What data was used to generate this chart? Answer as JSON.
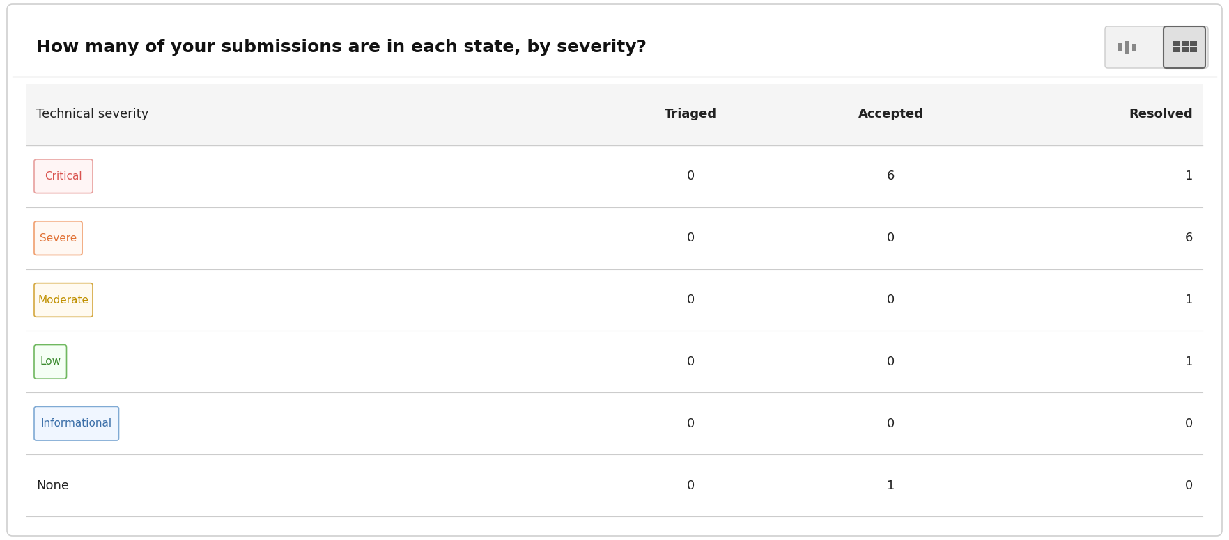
{
  "title": "How many of your submissions are in each state, by severity?",
  "title_fontsize": 18,
  "title_fontweight": "bold",
  "columns": [
    "Technical severity",
    "Triaged",
    "Accepted",
    "Resolved"
  ],
  "col_weights": [
    0.48,
    0.17,
    0.17,
    0.18
  ],
  "rows": [
    {
      "label": "Critical",
      "badge": true,
      "badge_text_color": "#d9534f",
      "badge_border_color": "#e8a09e",
      "badge_bg": "#fff5f5",
      "triaged": "0",
      "accepted": "6",
      "resolved": "1"
    },
    {
      "label": "Severe",
      "badge": true,
      "badge_text_color": "#e07033",
      "badge_border_color": "#f0a070",
      "badge_bg": "#fff8f3",
      "triaged": "0",
      "accepted": "0",
      "resolved": "6"
    },
    {
      "label": "Moderate",
      "badge": true,
      "badge_text_color": "#c09000",
      "badge_border_color": "#d4a840",
      "badge_bg": "#fffaf0",
      "triaged": "0",
      "accepted": "0",
      "resolved": "1"
    },
    {
      "label": "Low",
      "badge": true,
      "badge_text_color": "#3a8a2e",
      "badge_border_color": "#70b860",
      "badge_bg": "#f5fff5",
      "triaged": "0",
      "accepted": "0",
      "resolved": "1"
    },
    {
      "label": "Informational",
      "badge": true,
      "badge_text_color": "#3a6ea8",
      "badge_border_color": "#80aad4",
      "badge_bg": "#f0f6ff",
      "triaged": "0",
      "accepted": "0",
      "resolved": "0"
    },
    {
      "label": "None",
      "badge": false,
      "badge_text_color": null,
      "badge_border_color": null,
      "badge_bg": null,
      "triaged": "0",
      "accepted": "1",
      "resolved": "0"
    }
  ],
  "header_bg": "#f5f5f5",
  "divider_color": "#cccccc",
  "outer_border_color": "#d0d0d0",
  "header_fontsize": 13,
  "cell_fontsize": 13,
  "badge_fontsize": 11,
  "fig_bg": "#ffffff",
  "fig_width": 17.64,
  "fig_height": 7.76
}
